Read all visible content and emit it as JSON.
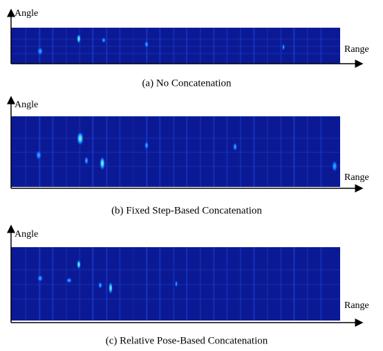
{
  "panels": [
    {
      "y_label": "Angle",
      "x_label": "Range",
      "caption": "(a) No Concatenation"
    },
    {
      "y_label": "Angle",
      "x_label": "Range",
      "caption": "(b) Fixed Step-Based Concatenation"
    },
    {
      "y_label": "Angle",
      "x_label": "Range",
      "caption": "(c) Relative Pose-Based Concatenation"
    }
  ]
}
